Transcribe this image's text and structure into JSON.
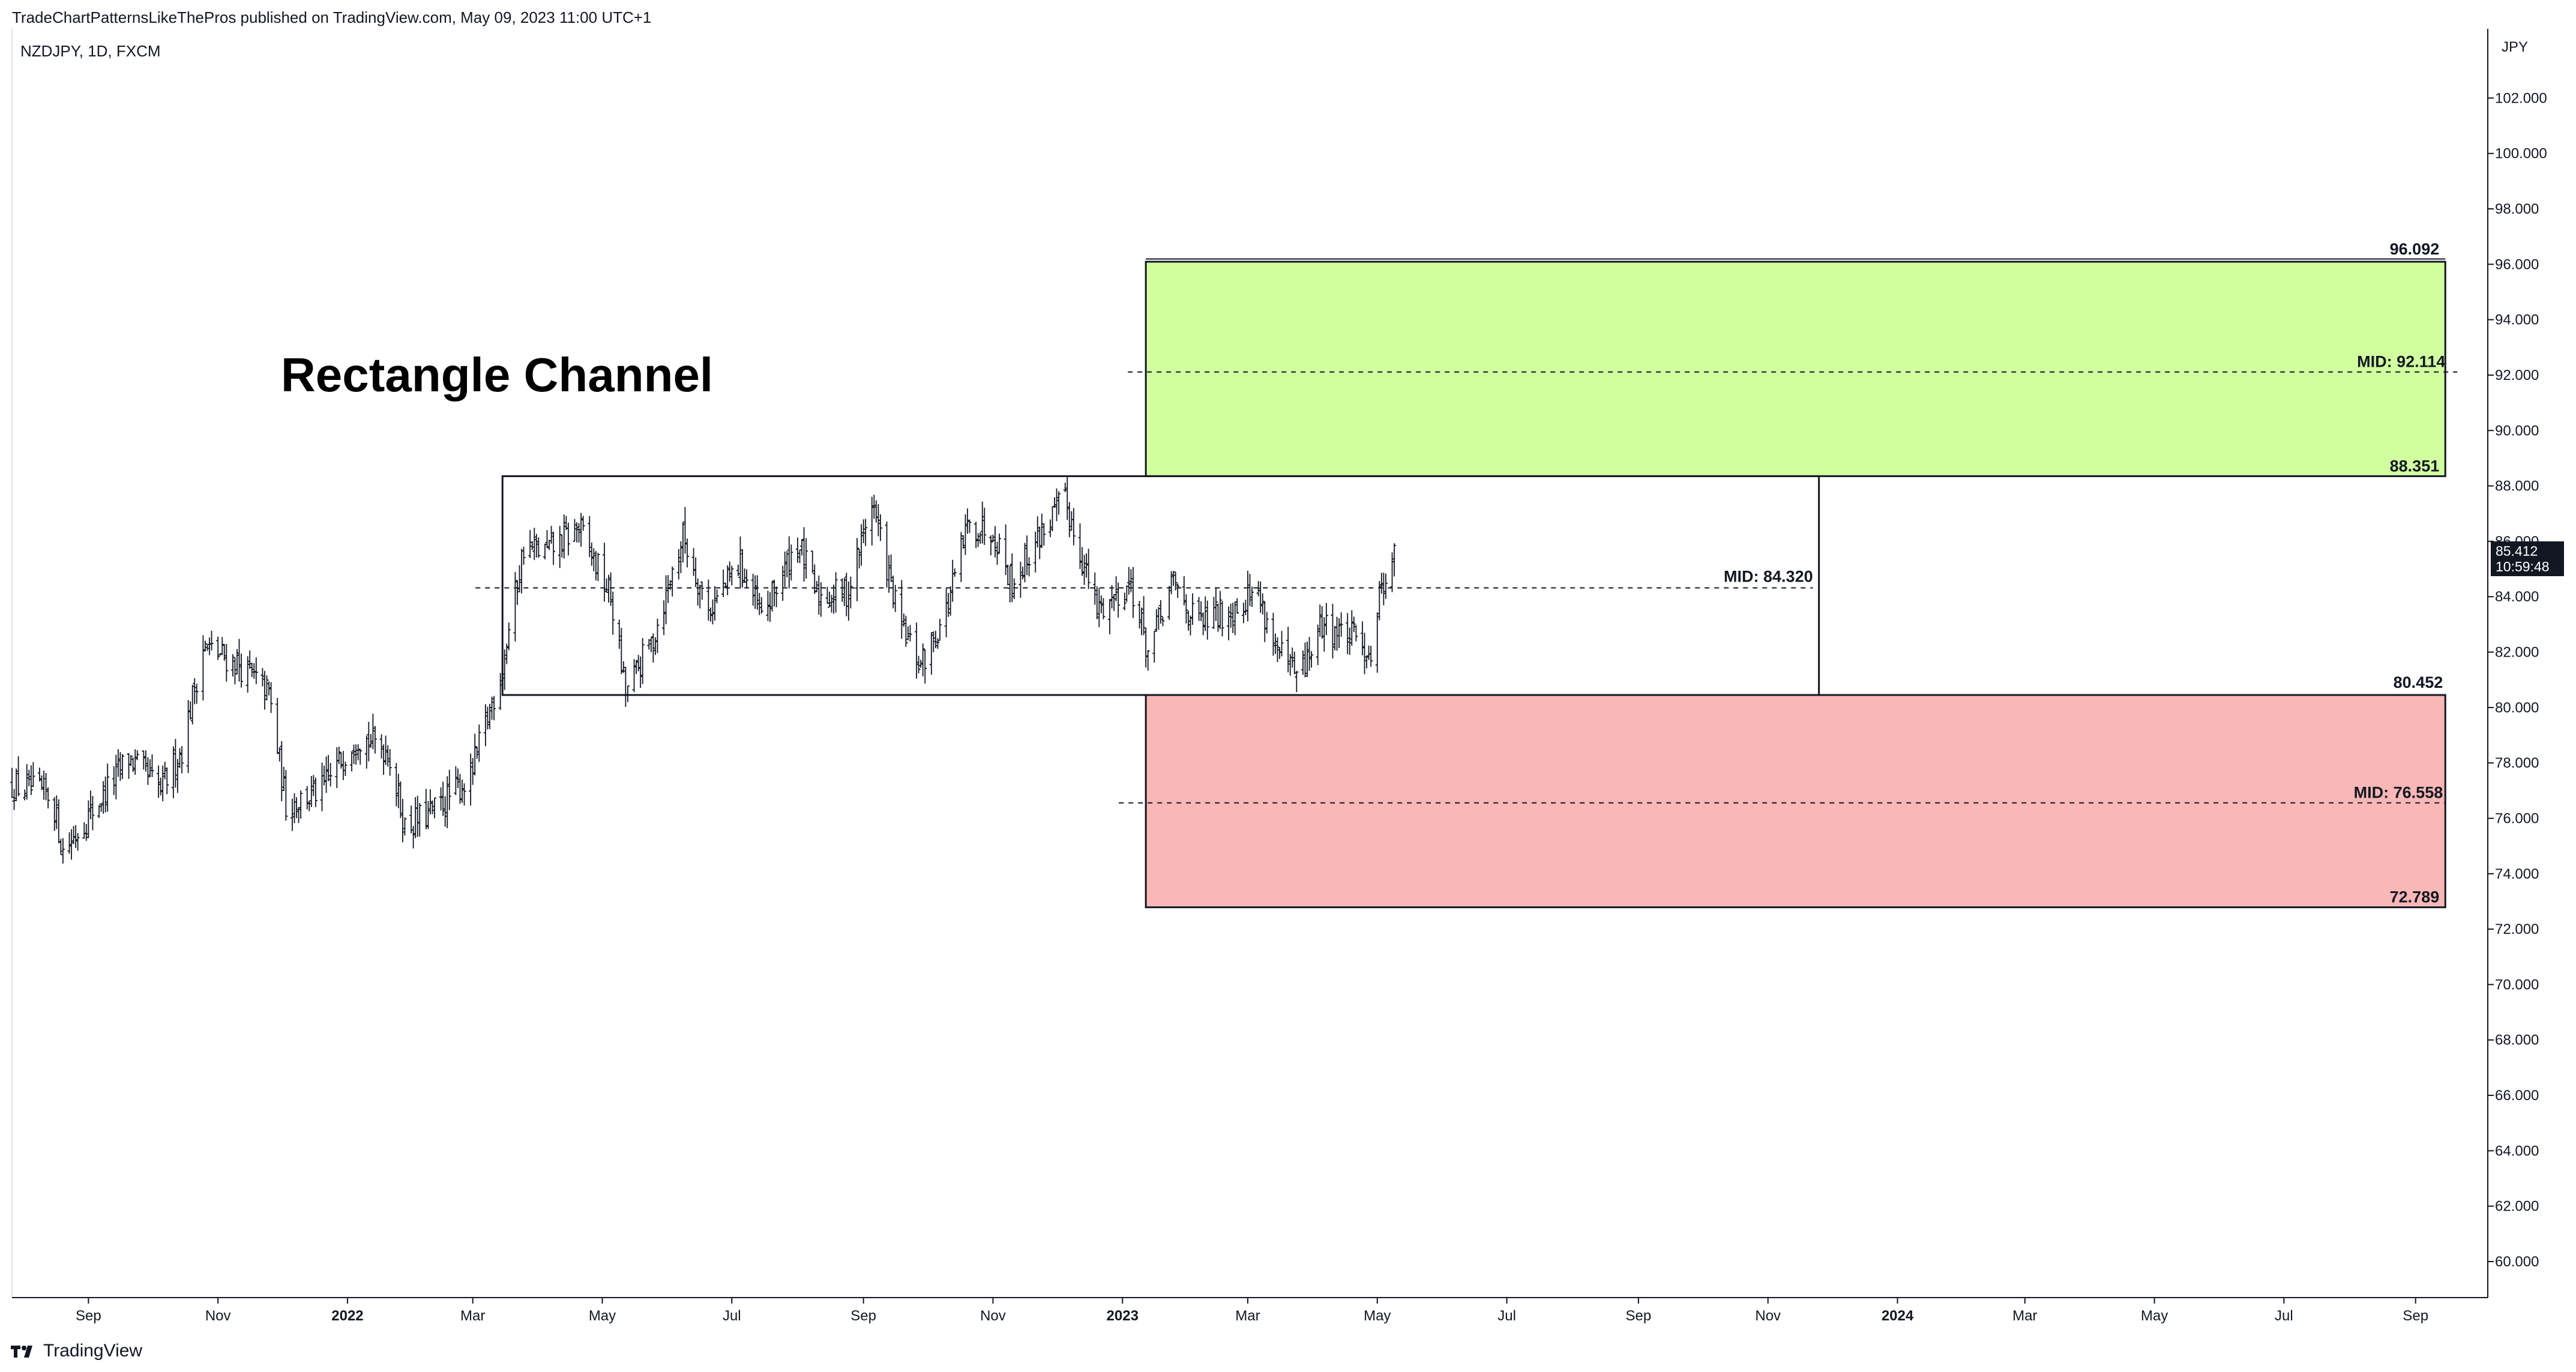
{
  "header": {
    "published": "TradeChartPatternsLikeThePros published on TradingView.com, May 09, 2023 11:00 UTC+1",
    "symbol": "NZDJPY, 1D, FXCM",
    "footer_brand": "TradingView",
    "currency": "JPY"
  },
  "price_badge": {
    "price": "85.412",
    "countdown": "10:59:48"
  },
  "colors": {
    "green_zone": "#d1ffa0",
    "red_zone": "#f9b7b6",
    "line": "#131722",
    "axis_text": "#131722"
  },
  "chart_data": {
    "type": "bar",
    "title": "Rectangle Channel",
    "y_axis": {
      "ylim": [
        58.7,
        104.5
      ],
      "ticks": [
        "102.000",
        "100.000",
        "98.000",
        "96.000",
        "94.000",
        "92.000",
        "90.000",
        "88.000",
        "86.000",
        "84.000",
        "82.000",
        "80.000",
        "78.000",
        "76.000",
        "74.000",
        "72.000",
        "70.000",
        "68.000",
        "66.000",
        "64.000",
        "62.000",
        "60.000"
      ],
      "position": "right"
    },
    "x_axis": {
      "date_range": [
        "2021-07-27",
        "2024-10-05"
      ],
      "ticks": [
        {
          "date": "2021-09-01",
          "label": "Sep",
          "bold": false
        },
        {
          "date": "2021-11-01",
          "label": "Nov",
          "bold": false
        },
        {
          "date": "2022-01-01",
          "label": "2022",
          "bold": true
        },
        {
          "date": "2022-03-01",
          "label": "Mar",
          "bold": false
        },
        {
          "date": "2022-05-01",
          "label": "May",
          "bold": false
        },
        {
          "date": "2022-07-01",
          "label": "Jul",
          "bold": false
        },
        {
          "date": "2022-09-01",
          "label": "Sep",
          "bold": false
        },
        {
          "date": "2022-11-01",
          "label": "Nov",
          "bold": false
        },
        {
          "date": "2023-01-01",
          "label": "2023",
          "bold": true
        },
        {
          "date": "2023-03-01",
          "label": "Mar",
          "bold": false
        },
        {
          "date": "2023-05-01",
          "label": "May",
          "bold": false
        },
        {
          "date": "2023-07-01",
          "label": "Jul",
          "bold": false
        },
        {
          "date": "2023-09-01",
          "label": "Sep",
          "bold": false
        },
        {
          "date": "2023-11-01",
          "label": "Nov",
          "bold": false
        },
        {
          "date": "2024-01-01",
          "label": "2024",
          "bold": true
        },
        {
          "date": "2024-03-01",
          "label": "Mar",
          "bold": false
        },
        {
          "date": "2024-05-01",
          "label": "May",
          "bold": false
        },
        {
          "date": "2024-07-01",
          "label": "Jul",
          "bold": false
        },
        {
          "date": "2024-09-01",
          "label": "Sep",
          "bold": false
        }
      ]
    },
    "series": [
      {
        "style": "ohlc-bars",
        "anchors": [
          [
            "2021-07-27",
            77.2
          ],
          [
            "2021-08-15",
            76.8
          ],
          [
            "2021-08-20",
            74.8
          ],
          [
            "2021-09-05",
            76.5
          ],
          [
            "2021-09-20",
            78.2
          ],
          [
            "2021-10-05",
            77.0
          ],
          [
            "2021-10-15",
            78.5
          ],
          [
            "2021-10-25",
            82.2
          ],
          [
            "2021-11-10",
            81.6
          ],
          [
            "2021-11-25",
            80.5
          ],
          [
            "2021-12-03",
            76.5
          ],
          [
            "2021-12-20",
            77.0
          ],
          [
            "2022-01-05",
            79.0
          ],
          [
            "2022-01-20",
            78.5
          ],
          [
            "2022-01-28",
            75.7
          ],
          [
            "2022-02-10",
            76.2
          ],
          [
            "2022-02-28",
            77.5
          ],
          [
            "2022-03-15",
            81.5
          ],
          [
            "2022-03-25",
            85.8
          ],
          [
            "2022-04-05",
            85.6
          ],
          [
            "2022-04-20",
            86.5
          ],
          [
            "2022-05-05",
            84.0
          ],
          [
            "2022-05-12",
            80.5
          ],
          [
            "2022-05-25",
            82.5
          ],
          [
            "2022-06-08",
            86.2
          ],
          [
            "2022-06-20",
            83.5
          ],
          [
            "2022-07-05",
            85.2
          ],
          [
            "2022-07-15",
            83.2
          ],
          [
            "2022-08-01",
            86.0
          ],
          [
            "2022-08-10",
            84.0
          ],
          [
            "2022-08-25",
            84.2
          ],
          [
            "2022-09-05",
            87.5
          ],
          [
            "2022-09-18",
            83.0
          ],
          [
            "2022-09-28",
            81.5
          ],
          [
            "2022-10-10",
            83.5
          ],
          [
            "2022-10-20",
            86.5
          ],
          [
            "2022-11-01",
            86.5
          ],
          [
            "2022-11-10",
            84.5
          ],
          [
            "2022-11-25",
            86.5
          ],
          [
            "2022-12-05",
            87.5
          ],
          [
            "2022-12-20",
            83.5
          ],
          [
            "2023-01-05",
            84.5
          ],
          [
            "2023-01-13",
            82.0
          ],
          [
            "2023-01-25",
            84.5
          ],
          [
            "2023-02-05",
            83.0
          ],
          [
            "2023-02-20",
            83.5
          ],
          [
            "2023-03-05",
            84.3
          ],
          [
            "2023-03-15",
            82.0
          ],
          [
            "2023-03-25",
            81.0
          ],
          [
            "2023-04-05",
            83.0
          ],
          [
            "2023-04-20",
            82.5
          ],
          [
            "2023-04-28",
            82.0
          ],
          [
            "2023-05-03",
            84.5
          ],
          [
            "2023-05-09",
            85.412
          ]
        ]
      }
    ],
    "annotations": {
      "channel_box": {
        "start": "2022-03-15",
        "end": "2023-11-25",
        "top": 88.351,
        "bottom": 80.452,
        "mid": 84.32,
        "mid_label": "MID: 84.320"
      },
      "green_zone": {
        "start": "2023-01-12",
        "end": "2024-09-15",
        "top": 96.092,
        "bottom": 88.351,
        "mid": 92.114,
        "top_label": "96.092",
        "bottom_label": "88.351",
        "mid_label": "MID: 92.114"
      },
      "red_zone": {
        "start": "2023-01-12",
        "end": "2024-09-15",
        "top": 80.452,
        "bottom": 72.789,
        "mid": 76.558,
        "top_label": "80.452",
        "bottom_label": "72.789",
        "mid_label": "MID: 76.558"
      }
    }
  }
}
